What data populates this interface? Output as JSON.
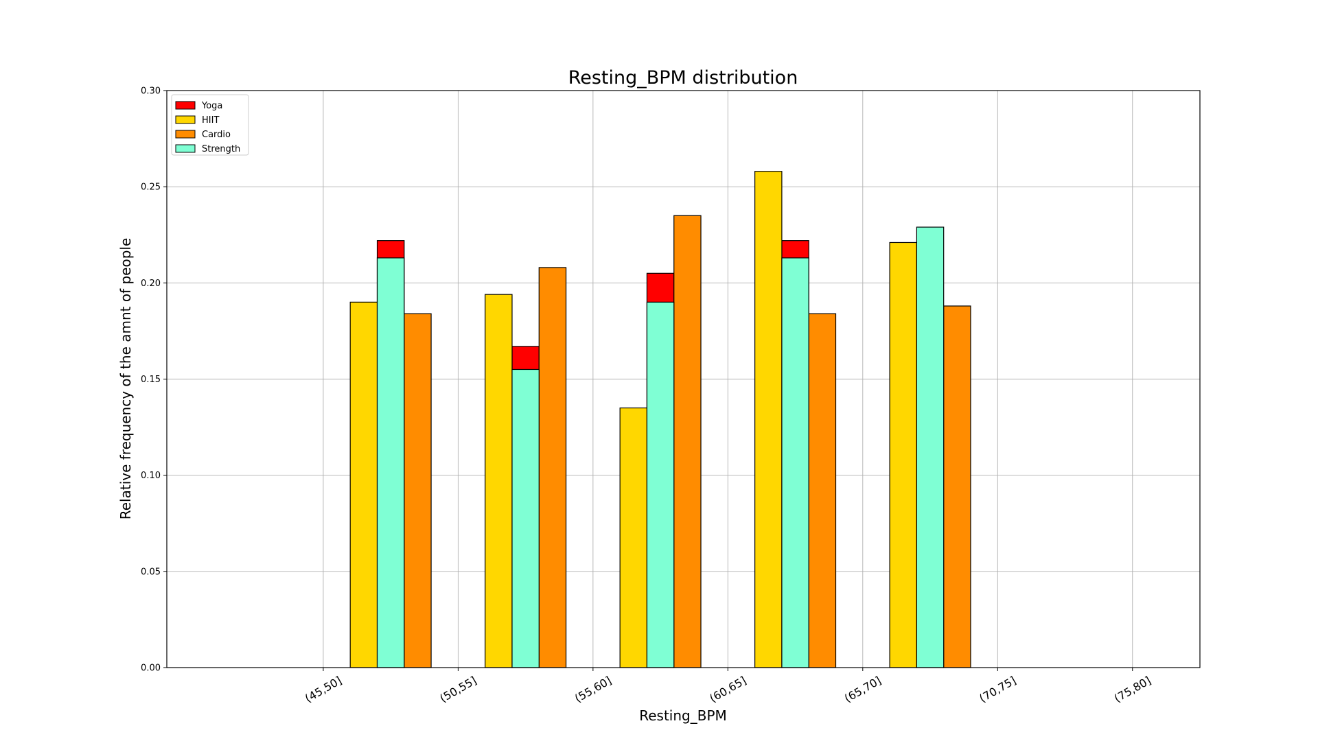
{
  "chart_data": {
    "type": "bar",
    "title": "Resting_BPM distribution",
    "xlabel": "Resting_BPM",
    "ylabel": "Relative frequency of the amnt of people",
    "categories": [
      "(45,50]",
      "(50,55]",
      "(55,60]",
      "(60,65]",
      "(65,70]",
      "(70,75]",
      "(75,80]"
    ],
    "ylim": [
      0,
      0.3
    ],
    "yticks": [
      "0.00",
      "0.05",
      "0.10",
      "0.15",
      "0.20",
      "0.25",
      "0.30"
    ],
    "grid": true,
    "legend_position": "upper-left",
    "series": [
      {
        "name": "Yoga",
        "color": "#ff0000",
        "x": [
          47.5,
          52.5,
          57.5,
          62.5,
          67.5,
          72.5,
          77.5
        ],
        "values": [
          0.0,
          0.222,
          0.167,
          0.205,
          0.222,
          0.184,
          0.0
        ]
      },
      {
        "name": "HIIT",
        "color": "#ffd700",
        "x": [
          46.5,
          51.5,
          56.5,
          61.5,
          66.5,
          71.5,
          76.5
        ],
        "values": [
          0.0,
          0.19,
          0.194,
          0.135,
          0.258,
          0.221,
          0.0
        ]
      },
      {
        "name": "Cardio",
        "color": "#ff8c00",
        "x": [
          48.5,
          53.5,
          58.5,
          63.5,
          68.5,
          73.5,
          78.5
        ],
        "values": [
          0.0,
          0.184,
          0.208,
          0.235,
          0.184,
          0.188,
          0.0
        ]
      },
      {
        "name": "Strength",
        "color": "#7fffd4",
        "x": [
          47.5,
          52.5,
          57.5,
          62.5,
          67.5,
          72.5,
          77.5
        ],
        "values": [
          0.0,
          0.213,
          0.155,
          0.19,
          0.213,
          0.229,
          0.0
        ]
      }
    ]
  }
}
